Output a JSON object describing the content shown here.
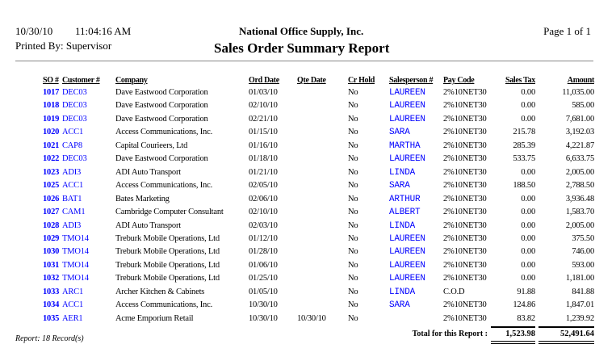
{
  "header": {
    "date": "10/30/10",
    "time": "11:04:16 AM",
    "company": "National Office Supply, Inc.",
    "page": "Page 1 of 1",
    "printed_by": "Printed By: Supervisor",
    "title": "Sales Order Summary Report"
  },
  "columns": [
    "SO #",
    "Customer #",
    "Company",
    "Ord Date",
    "Qte Date",
    "Cr Hold",
    "Salesperson #",
    "Pay Code",
    "Sales Tax",
    "Amount"
  ],
  "rows": [
    [
      "1017",
      "DEC03",
      "Dave Eastwood Corporation",
      "01/03/10",
      "",
      "No",
      "LAUREEN",
      "2%10NET30",
      "0.00",
      "11,035.00"
    ],
    [
      "1018",
      "DEC03",
      "Dave Eastwood Corporation",
      "02/10/10",
      "",
      "No",
      "LAUREEN",
      "2%10NET30",
      "0.00",
      "585.00"
    ],
    [
      "1019",
      "DEC03",
      "Dave Eastwood Corporation",
      "02/21/10",
      "",
      "No",
      "LAUREEN",
      "2%10NET30",
      "0.00",
      "7,681.00"
    ],
    [
      "1020",
      "ACC1",
      "Access Communications, Inc.",
      "01/15/10",
      "",
      "No",
      "SARA",
      "2%10NET30",
      "215.78",
      "3,192.03"
    ],
    [
      "1021",
      "CAP8",
      "Capital Courieers, Ltd",
      "01/16/10",
      "",
      "No",
      "MARTHA",
      "2%10NET30",
      "285.39",
      "4,221.87"
    ],
    [
      "1022",
      "DEC03",
      "Dave Eastwood Corporation",
      "01/18/10",
      "",
      "No",
      "LAUREEN",
      "2%10NET30",
      "533.75",
      "6,633.75"
    ],
    [
      "1023",
      "ADI3",
      "ADI Auto Transport",
      "01/21/10",
      "",
      "No",
      "LINDA",
      "2%10NET30",
      "0.00",
      "2,005.00"
    ],
    [
      "1025",
      "ACC1",
      "Access Communications, Inc.",
      "02/05/10",
      "",
      "No",
      "SARA",
      "2%10NET30",
      "188.50",
      "2,788.50"
    ],
    [
      "1026",
      "BAT1",
      "Bates Marketing",
      "02/06/10",
      "",
      "No",
      "ARTHUR",
      "2%10NET30",
      "0.00",
      "3,936.48"
    ],
    [
      "1027",
      "CAM1",
      "Cambridge Computer Consultant",
      "02/10/10",
      "",
      "No",
      "ALBERT",
      "2%10NET30",
      "0.00",
      "1,583.70"
    ],
    [
      "1028",
      "ADI3",
      "ADI Auto Transport",
      "02/03/10",
      "",
      "No",
      "LINDA",
      "2%10NET30",
      "0.00",
      "2,005.00"
    ],
    [
      "1029",
      "TMO14",
      "Treburk Mobile Operations, Ltd",
      "01/12/10",
      "",
      "No",
      "LAUREEN",
      "2%10NET30",
      "0.00",
      "375.50"
    ],
    [
      "1030",
      "TMO14",
      "Treburk Mobile Operations, Ltd",
      "01/28/10",
      "",
      "No",
      "LAUREEN",
      "2%10NET30",
      "0.00",
      "746.00"
    ],
    [
      "1031",
      "TMO14",
      "Treburk Mobile Operations, Ltd",
      "01/06/10",
      "",
      "No",
      "LAUREEN",
      "2%10NET30",
      "0.00",
      "593.00"
    ],
    [
      "1032",
      "TMO14",
      "Treburk Mobile Operations, Ltd",
      "01/25/10",
      "",
      "No",
      "LAUREEN",
      "2%10NET30",
      "0.00",
      "1,181.00"
    ],
    [
      "1033",
      "ARC1",
      "Archer Kitchen & Cabinets",
      "01/05/10",
      "",
      "No",
      "LINDA",
      "C.O.D",
      "91.88",
      "841.88"
    ],
    [
      "1034",
      "ACC1",
      "Access Communications, Inc.",
      "10/30/10",
      "",
      "No",
      "SARA",
      "2%10NET30",
      "124.86",
      "1,847.01"
    ],
    [
      "1035",
      "AER1",
      "Acme Emporium Retail",
      "10/30/10",
      "10/30/10",
      "No",
      "",
      "2%10NET30",
      "83.82",
      "1,239.92"
    ]
  ],
  "footer": {
    "records": "Report: 18 Record(s)",
    "total_label": "Total for this Report :",
    "total_tax": "1,523.98",
    "total_amount": "52,491.64"
  },
  "colors": {
    "link": "#0000ff"
  }
}
